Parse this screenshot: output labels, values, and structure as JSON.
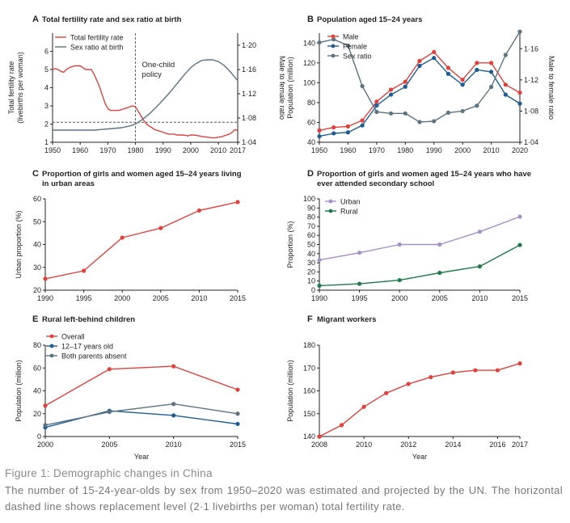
{
  "figure": {
    "caption_title": "Figure 1: Demographic changes in China",
    "caption_text": "The number of 15-24-year-olds by sex from 1950–2020 was estimated and projected by the UN. The horizontal dashed line shows replacement level (2·1 livebirths per woman) total fertility rate."
  },
  "colors": {
    "red": "#e2403a",
    "blue": "#1e5c96",
    "slate": "#5c7382",
    "purple": "#a58fc9",
    "green": "#1d7a4a",
    "dash": "#555555"
  },
  "chart_data": [
    {
      "id": "A",
      "label": "A",
      "type": "line",
      "title": "Total fertility rate and sex ratio at birth",
      "xlabel": "",
      "ylabel": "Total fertility rate (livebirths per woman)",
      "y2label": "Male to female ratio",
      "xlim": [
        1950,
        2017
      ],
      "ylim": [
        1,
        7
      ],
      "y2lim": [
        1.04,
        1.22
      ],
      "xticks": [
        "1950",
        "1960",
        "1970",
        "1980",
        "1990",
        "2000",
        "2010",
        "2017"
      ],
      "yticks": [
        "1",
        "2",
        "3",
        "4",
        "5",
        "6"
      ],
      "y2ticks": [
        "1·04",
        "1·08",
        "1·12",
        "1·16",
        "1·20"
      ],
      "reference_line": 2.1,
      "annotation": "One-child policy",
      "annotation_x": 1980,
      "legend": [
        "Total fertility rate",
        "Sex ratio at birth"
      ],
      "series": [
        {
          "name": "Total fertility rate",
          "color": "red",
          "axis": "left",
          "x": [
            1950,
            1951,
            1952,
            1953,
            1954,
            1955,
            1956,
            1957,
            1958,
            1959,
            1960,
            1961,
            1962,
            1963,
            1964,
            1965,
            1966,
            1967,
            1968,
            1969,
            1970,
            1971,
            1972,
            1973,
            1974,
            1975,
            1976,
            1977,
            1978,
            1979,
            1980,
            1981,
            1982,
            1983,
            1984,
            1985,
            1986,
            1987,
            1988,
            1989,
            1990,
            1991,
            1992,
            1993,
            1994,
            1995,
            1996,
            1997,
            1998,
            1999,
            2000,
            2001,
            2002,
            2003,
            2004,
            2005,
            2006,
            2007,
            2008,
            2009,
            2010,
            2011,
            2012,
            2013,
            2014,
            2015,
            2016,
            2017
          ],
          "values": [
            5.0,
            5.05,
            5.0,
            4.9,
            4.85,
            5.0,
            5.1,
            5.15,
            5.2,
            5.2,
            5.2,
            5.1,
            5.0,
            5.0,
            5.0,
            4.75,
            4.4,
            4.05,
            3.6,
            3.15,
            2.85,
            2.75,
            2.75,
            2.75,
            2.75,
            2.8,
            2.85,
            2.9,
            2.95,
            3.0,
            2.95,
            2.7,
            2.45,
            2.2,
            2.0,
            1.9,
            1.8,
            1.7,
            1.65,
            1.6,
            1.55,
            1.5,
            1.45,
            1.45,
            1.45,
            1.4,
            1.4,
            1.4,
            1.38,
            1.35,
            1.4,
            1.4,
            1.38,
            1.35,
            1.32,
            1.3,
            1.28,
            1.26,
            1.25,
            1.25,
            1.28,
            1.3,
            1.35,
            1.4,
            1.45,
            1.55,
            1.7,
            1.65
          ]
        },
        {
          "name": "Sex ratio at birth",
          "color": "slate",
          "axis": "right",
          "x": [
            1950,
            1955,
            1960,
            1965,
            1970,
            1975,
            1978,
            1980,
            1982,
            1984,
            1986,
            1988,
            1990,
            1992,
            1994,
            1996,
            1998,
            2000,
            2002,
            2004,
            2006,
            2008,
            2010,
            2012,
            2014,
            2016,
            2017
          ],
          "values": [
            1.06,
            1.06,
            1.06,
            1.06,
            1.062,
            1.064,
            1.067,
            1.07,
            1.076,
            1.083,
            1.091,
            1.1,
            1.11,
            1.12,
            1.131,
            1.142,
            1.153,
            1.163,
            1.17,
            1.175,
            1.176,
            1.176,
            1.173,
            1.167,
            1.158,
            1.147,
            1.142
          ]
        }
      ]
    },
    {
      "id": "B",
      "label": "B",
      "type": "line",
      "title": "Population aged 15–24 years",
      "ylabel": "Population (million)",
      "y2label": "Male to female ratio",
      "xlim": [
        1950,
        2020
      ],
      "ylim": [
        40,
        150
      ],
      "y2lim": [
        1.04,
        1.18
      ],
      "xticks": [
        "1950",
        "1960",
        "1970",
        "1980",
        "1990",
        "2000",
        "2010",
        "2020"
      ],
      "yticks": [
        "40",
        "60",
        "80",
        "100",
        "120",
        "140"
      ],
      "y2ticks": [
        "1·04",
        "1·08",
        "1·12",
        "1·16"
      ],
      "legend": [
        "Male",
        "Female",
        "Sex ratio"
      ],
      "series": [
        {
          "name": "Male",
          "color": "red",
          "axis": "left",
          "x": [
            1950,
            1955,
            1960,
            1965,
            1970,
            1975,
            1980,
            1985,
            1990,
            1995,
            2000,
            2005,
            2010,
            2015,
            2020
          ],
          "values": [
            52,
            55,
            56,
            62,
            81,
            93,
            101,
            122,
            131,
            115,
            103,
            120,
            120,
            98,
            90
          ]
        },
        {
          "name": "Female",
          "color": "blue",
          "axis": "left",
          "x": [
            1950,
            1955,
            1960,
            1965,
            1970,
            1975,
            1980,
            1985,
            1990,
            1995,
            2000,
            2005,
            2010,
            2015,
            2020
          ],
          "values": [
            46,
            49,
            50,
            57,
            77,
            88,
            96,
            117,
            125,
            109,
            98,
            113,
            111,
            88,
            79
          ]
        },
        {
          "name": "Sex ratio",
          "color": "slate",
          "axis": "right",
          "x": [
            1950,
            1955,
            1960,
            1965,
            1970,
            1975,
            1980,
            1985,
            1990,
            1995,
            2000,
            2005,
            2010,
            2015,
            2020
          ],
          "values": [
            1.168,
            1.172,
            1.164,
            1.112,
            1.079,
            1.077,
            1.077,
            1.066,
            1.067,
            1.078,
            1.08,
            1.087,
            1.111,
            1.152,
            1.182
          ]
        }
      ]
    },
    {
      "id": "C",
      "label": "C",
      "type": "line",
      "title": "Proportion of girls and women aged 15–24 years living in urban areas",
      "ylabel": "Urban proportion (%)",
      "xlim": [
        1990,
        2015
      ],
      "ylim": [
        20,
        60
      ],
      "xticks": [
        "1990",
        "1995",
        "2000",
        "2005",
        "2010",
        "2015"
      ],
      "yticks": [
        "20",
        "30",
        "40",
        "50",
        "60"
      ],
      "legend": [],
      "series": [
        {
          "name": "Urban proportion",
          "color": "red",
          "x": [
            1990,
            1995,
            2000,
            2005,
            2010,
            2015
          ],
          "values": [
            25,
            28.5,
            43,
            47.2,
            54.9,
            58.6
          ]
        }
      ]
    },
    {
      "id": "D",
      "label": "D",
      "type": "line",
      "title": "Proportion of girls and women aged 15–24 years who have ever attended secondary school",
      "ylabel": "Proportion (%)",
      "xlim": [
        1990,
        2015
      ],
      "ylim": [
        0,
        100
      ],
      "xticks": [
        "1990",
        "1995",
        "2000",
        "2005",
        "2010",
        "2015"
      ],
      "yticks": [
        "0",
        "10",
        "20",
        "30",
        "40",
        "50",
        "60",
        "70",
        "80",
        "90",
        "100"
      ],
      "legend": [
        "Urban",
        "Rural"
      ],
      "series": [
        {
          "name": "Urban",
          "color": "purple",
          "x": [
            1990,
            1995,
            2000,
            2005,
            2010,
            2015
          ],
          "values": [
            33,
            41,
            50,
            50,
            64,
            80.5
          ]
        },
        {
          "name": "Rural",
          "color": "green",
          "x": [
            1990,
            1995,
            2000,
            2005,
            2010,
            2015
          ],
          "values": [
            5,
            7,
            11,
            19,
            26,
            49.5
          ]
        }
      ]
    },
    {
      "id": "E",
      "label": "E",
      "type": "line",
      "title": "Rural left-behind children",
      "xlabel": "Year",
      "ylabel": "Population (million)",
      "xlim": [
        2000,
        2015
      ],
      "ylim": [
        0,
        80
      ],
      "xticks": [
        "2000",
        "2005",
        "2010",
        "2015"
      ],
      "yticks": [
        "0",
        "20",
        "40",
        "60",
        "80"
      ],
      "legend": [
        "Overall",
        "12–17 years old",
        "Both parents absent"
      ],
      "series": [
        {
          "name": "Overall",
          "color": "red",
          "x": [
            2000,
            2005,
            2010,
            2015
          ],
          "values": [
            27,
            59,
            61.5,
            41
          ]
        },
        {
          "name": "12–17 years old",
          "color": "blue",
          "x": [
            2000,
            2005,
            2010,
            2015
          ],
          "values": [
            8,
            22.5,
            18.5,
            11
          ]
        },
        {
          "name": "Both parents absent",
          "color": "slate",
          "x": [
            2000,
            2005,
            2010,
            2015
          ],
          "values": [
            10,
            21.5,
            28.5,
            20
          ]
        }
      ]
    },
    {
      "id": "F",
      "label": "F",
      "type": "line",
      "title": "Migrant workers",
      "xlabel": "Year",
      "ylabel": "Population (million)",
      "xlim": [
        2008,
        2017
      ],
      "ylim": [
        140,
        180
      ],
      "xticks": [
        "2008",
        "2010",
        "2012",
        "2014",
        "2016",
        "2017"
      ],
      "yticks": [
        "140",
        "150",
        "160",
        "170",
        "180"
      ],
      "legend": [],
      "series": [
        {
          "name": "Migrant workers",
          "color": "red",
          "x": [
            2008,
            2009,
            2010,
            2011,
            2012,
            2013,
            2014,
            2015,
            2016,
            2017
          ],
          "values": [
            140,
            145,
            153,
            159,
            163,
            166,
            168,
            169,
            169,
            172
          ]
        }
      ]
    }
  ]
}
